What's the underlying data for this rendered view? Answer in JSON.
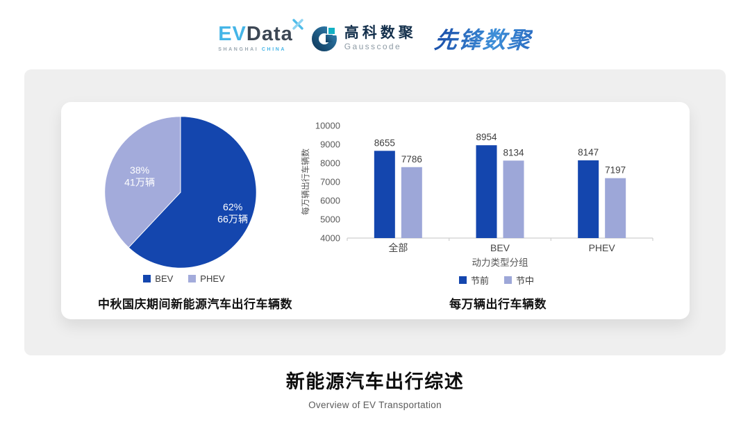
{
  "header": {
    "evdata": {
      "ev": "EV",
      "data": "Data",
      "sub_left": "SHANGHAI",
      "sub_right": "CHINA"
    },
    "gausscode": {
      "cn": "高科数聚",
      "en": "Gausscode"
    },
    "pioneer": {
      "text": "先锋数聚"
    }
  },
  "footer": {
    "title": "新能源汽车出行综述",
    "subtitle": "Overview of EV Transportation"
  },
  "colors": {
    "series_dark_blue": "#1446AE",
    "series_light_periwinkle": "#9DA7D8",
    "pie_light": "#A3ABDB",
    "panel_gray": "#EFEFEF",
    "axis_gray": "#CFCFCF",
    "tick_text": "#595959",
    "value_text": "#3D3D3D"
  },
  "chart_data": [
    {
      "type": "pie",
      "title": "中秋国庆期间新能源汽车出行车辆数",
      "start_angle_deg": 0,
      "direction": "clockwise",
      "slices": [
        {
          "label": "BEV",
          "percent": 62,
          "percent_label": "62%",
          "value_label": "66万辆",
          "color": "#1446AE"
        },
        {
          "label": "PHEV",
          "percent": 38,
          "percent_label": "38%",
          "value_label": "41万辆",
          "color": "#A3ABDB"
        }
      ]
    },
    {
      "type": "bar",
      "title": "每万辆出行车辆数",
      "categories": [
        "全部",
        "BEV",
        "PHEV"
      ],
      "series": [
        {
          "name": "节前",
          "values": [
            8655,
            8954,
            8147
          ],
          "color": "#1446AE"
        },
        {
          "name": "节中",
          "values": [
            7786,
            8134,
            7197
          ],
          "color": "#9DA7D8"
        }
      ],
      "xlabel": "动力类型分组",
      "ylabel": "每万辆出行车辆数",
      "ylim": [
        4000,
        10000
      ],
      "ytick_step": 1000,
      "grid": false,
      "legend_position": "bottom"
    }
  ]
}
